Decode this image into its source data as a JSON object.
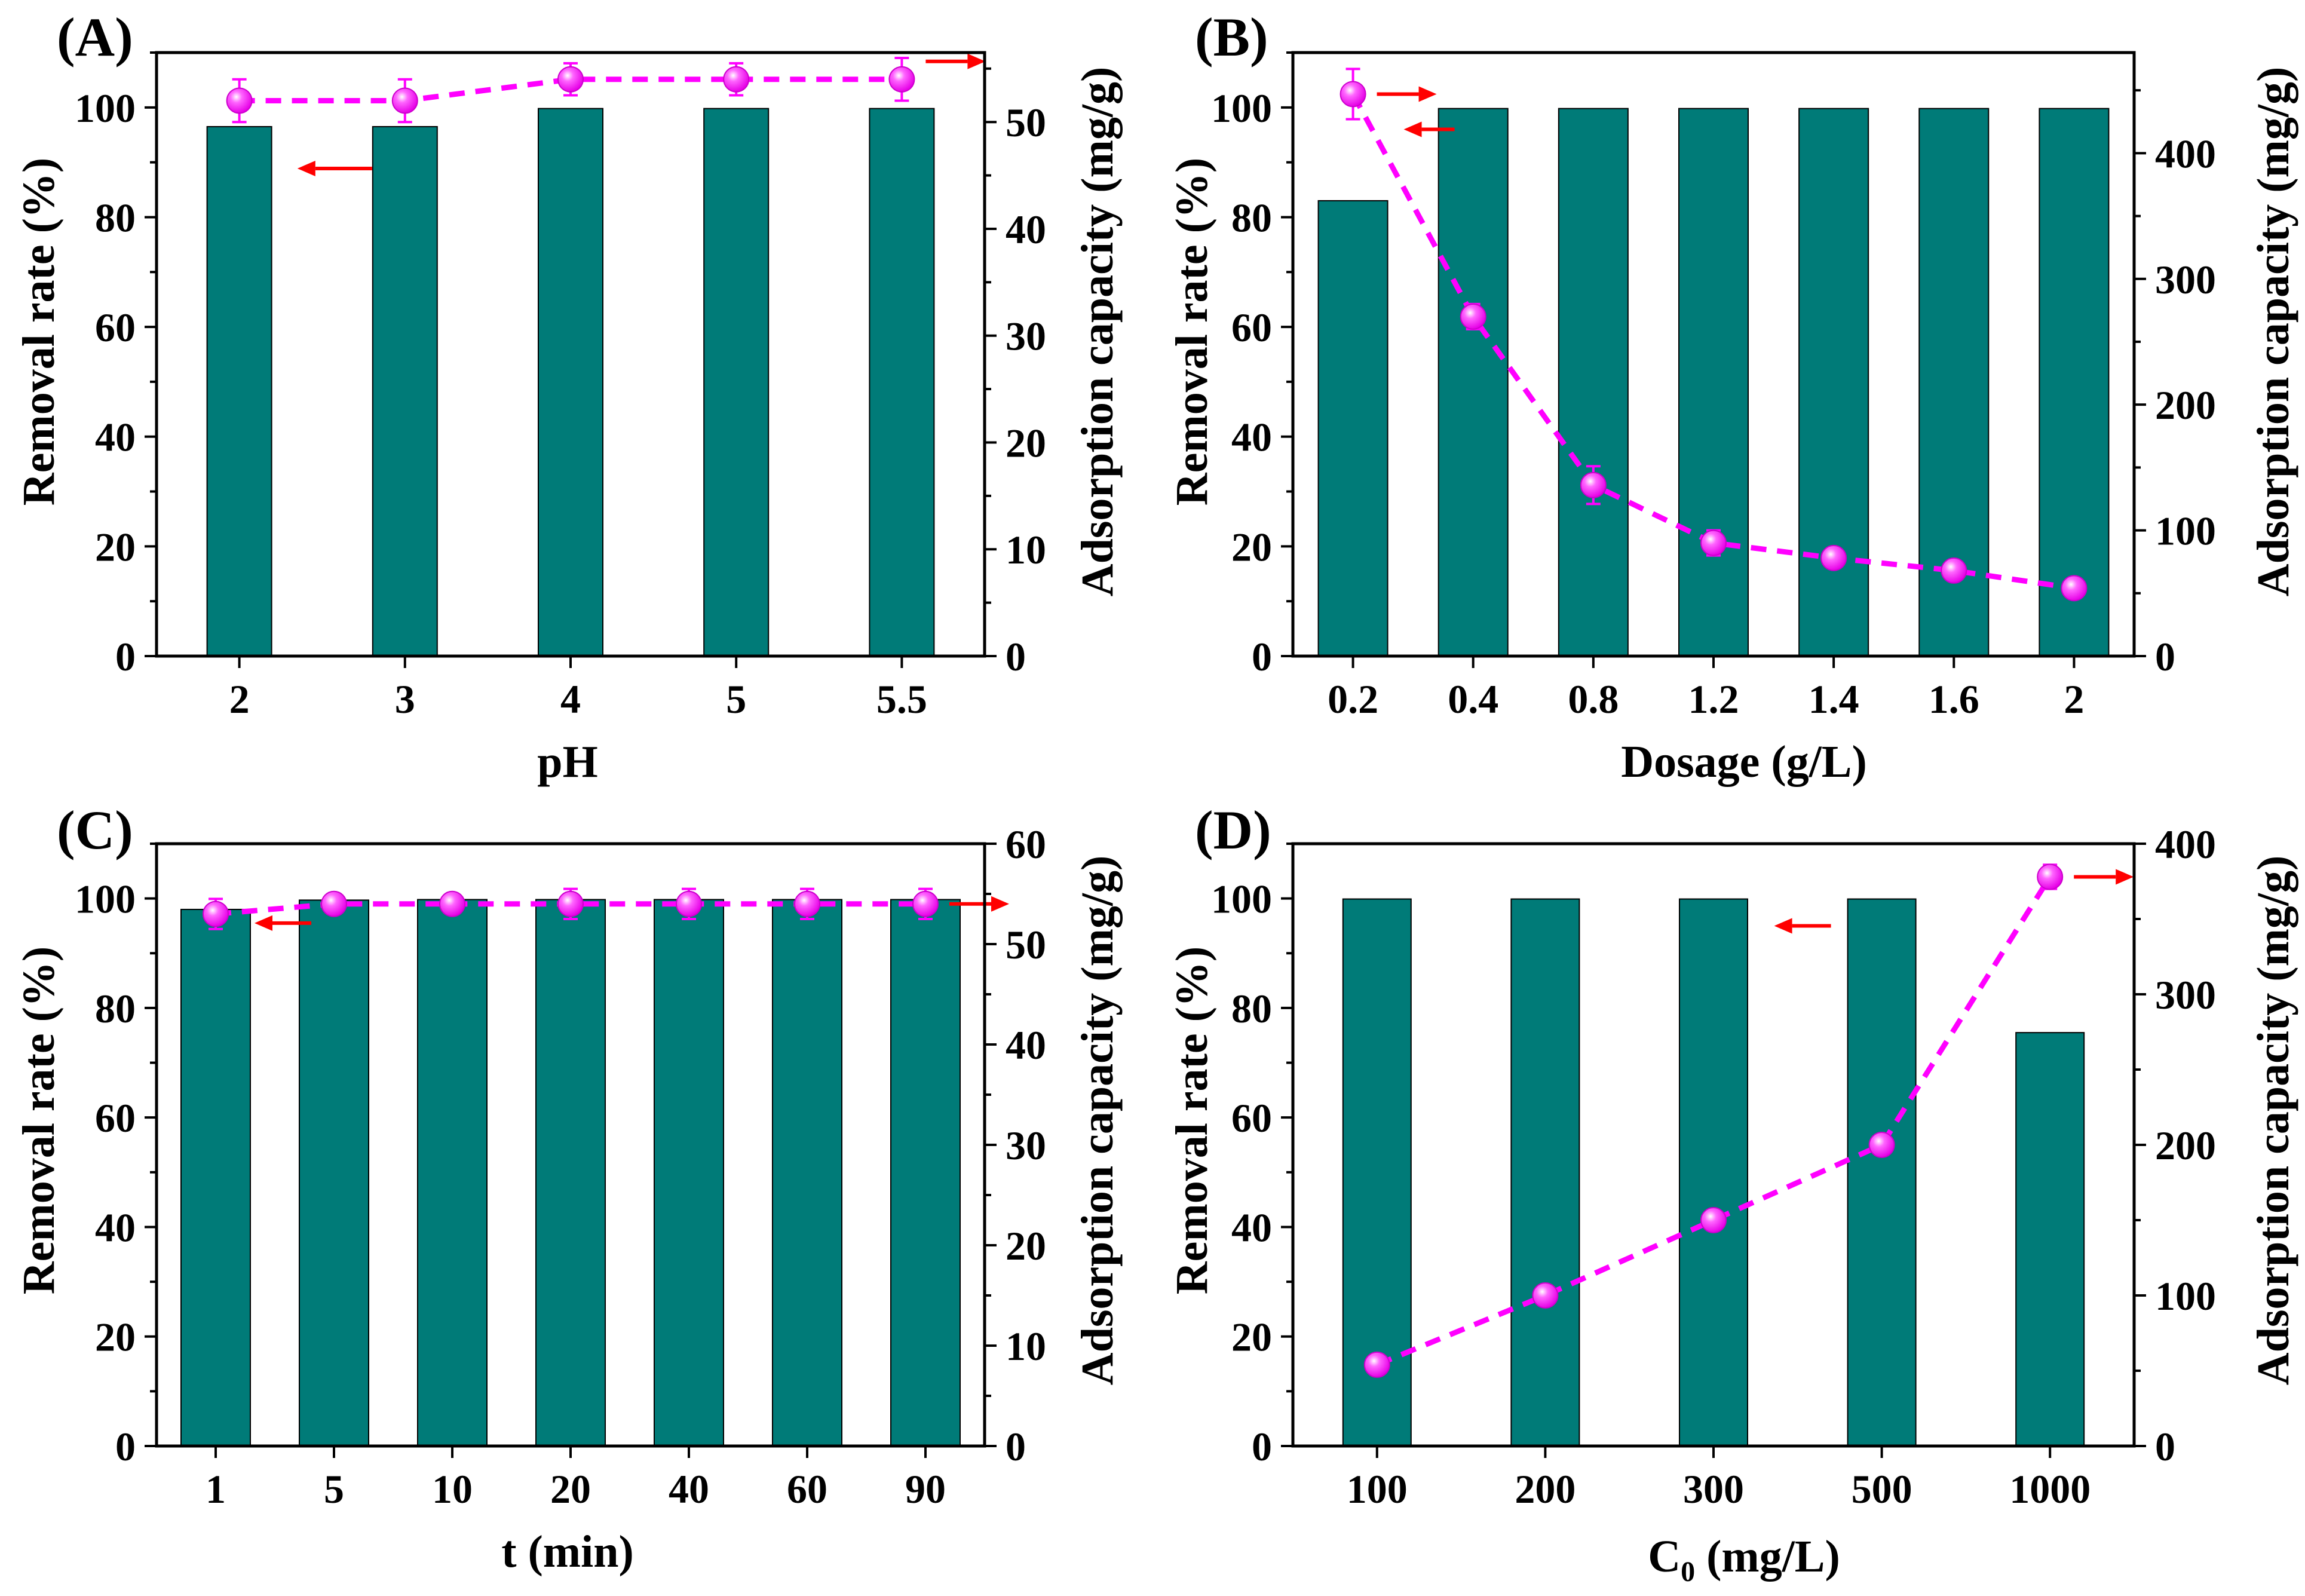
{
  "colors": {
    "bar_fill": "#007B78",
    "bar_stroke": "#000000",
    "point_fill": "#FF00FF",
    "line": "#FF00FF",
    "arrow": "#FF0000"
  },
  "chart_data": [
    {
      "panel": "(A)",
      "type": "bar",
      "categories": [
        "2",
        "3",
        "4",
        "5",
        "5.5"
      ],
      "series": [
        {
          "name": "Removal rate (%)",
          "axis": "left",
          "type": "bar",
          "values": [
            96.5,
            96.5,
            99.8,
            99.8,
            99.8
          ]
        },
        {
          "name": "Adsorption capacity (mg/g)",
          "axis": "right",
          "type": "line-scatter",
          "values": [
            52.0,
            52.0,
            54.0,
            54.0,
            54.0
          ],
          "errors": [
            2.0,
            2.0,
            1.5,
            1.5,
            2.0
          ]
        }
      ],
      "xlabel": "pH",
      "ylabel": "Removal rate (%)",
      "y2label": "Adsorption capacity (mg/g)",
      "ylim": [
        0,
        110
      ],
      "y2lim": [
        0,
        56.5
      ],
      "yticks": [
        "0",
        "20",
        "40",
        "60",
        "80",
        "100"
      ],
      "y2ticks": [
        "0",
        "10",
        "20",
        "30",
        "40",
        "50"
      ],
      "arrows": [
        {
          "series": "left",
          "category_index": 1,
          "direction": "left"
        },
        {
          "series": "right",
          "category_index": 4,
          "direction": "right"
        }
      ]
    },
    {
      "panel": "(B)",
      "type": "bar",
      "categories": [
        "0.2",
        "0.4",
        "0.8",
        "1.2",
        "1.4",
        "1.6",
        "2"
      ],
      "series": [
        {
          "name": "Removal rate (%)",
          "axis": "left",
          "type": "bar",
          "values": [
            83.0,
            99.8,
            99.8,
            99.8,
            99.8,
            99.8,
            99.8
          ]
        },
        {
          "name": "Adsorption capacity (mg/g)",
          "axis": "right",
          "type": "line-scatter",
          "values": [
            447,
            270,
            136,
            90,
            78,
            68,
            54
          ],
          "errors": [
            20,
            10,
            15,
            10,
            5,
            3,
            3
          ]
        }
      ],
      "xlabel": "Dosage (g/L)",
      "ylabel": "Removal rate (%)",
      "y2label": "Adsorption capacity (mg/g)",
      "ylim": [
        0,
        110
      ],
      "y2lim": [
        0,
        480
      ],
      "yticks": [
        "0",
        "20",
        "40",
        "60",
        "80",
        "100"
      ],
      "y2ticks": [
        "0",
        "100",
        "200",
        "300",
        "400"
      ],
      "arrows": [
        {
          "series": "right",
          "category_index": 0,
          "direction": "right"
        },
        {
          "series": "left",
          "category_index": 0,
          "direction": "left"
        }
      ]
    },
    {
      "panel": "(C)",
      "type": "bar",
      "categories": [
        "1",
        "5",
        "10",
        "20",
        "40",
        "60",
        "90"
      ],
      "series": [
        {
          "name": "Removal rate (%)",
          "axis": "left",
          "type": "bar",
          "values": [
            98.0,
            99.7,
            99.8,
            99.8,
            99.8,
            99.8,
            99.8
          ]
        },
        {
          "name": "Adsorption capacity (mg/g)",
          "axis": "right",
          "type": "line-scatter",
          "values": [
            53.0,
            54.0,
            54.0,
            54.0,
            54.0,
            54.0,
            54.0
          ],
          "errors": [
            1.5,
            0.5,
            0.5,
            1.5,
            1.5,
            1.5,
            1.5
          ]
        }
      ],
      "xlabel": "t (min)",
      "ylabel": "Removal rate (%)",
      "y2label": "Adsorption capacity (mg/g)",
      "ylim": [
        0,
        110
      ],
      "y2lim": [
        0,
        60
      ],
      "yticks": [
        "0",
        "20",
        "40",
        "60",
        "80",
        "100"
      ],
      "y2ticks": [
        "0",
        "10",
        "20",
        "30",
        "40",
        "50",
        "60"
      ],
      "arrows": [
        {
          "series": "left",
          "category_index": 0,
          "direction": "left"
        },
        {
          "series": "right",
          "category_index": 6,
          "direction": "right"
        }
      ]
    },
    {
      "panel": "(D)",
      "type": "bar",
      "categories": [
        "100",
        "200",
        "300",
        "500",
        "1000"
      ],
      "series": [
        {
          "name": "Removal rate (%)",
          "axis": "left",
          "type": "bar",
          "values": [
            99.9,
            99.9,
            99.9,
            99.9,
            75.5
          ]
        },
        {
          "name": "Adsorption capacity (mg/g)",
          "axis": "right",
          "type": "line-scatter",
          "values": [
            54,
            100,
            150,
            200,
            378
          ],
          "errors": [
            3,
            3,
            3,
            3,
            8
          ]
        }
      ],
      "xlabel_main": "C",
      "xlabel_sub": "0",
      "xlabel_rest": " (mg/L)",
      "ylabel": "Removal rate (%)",
      "y2label": "Adsorption capacity (mg/g)",
      "ylim": [
        0,
        110
      ],
      "y2lim": [
        0,
        400
      ],
      "yticks": [
        "0",
        "20",
        "40",
        "60",
        "80",
        "100"
      ],
      "y2ticks": [
        "0",
        "100",
        "200",
        "300",
        "400"
      ],
      "arrows": [
        {
          "series": "left",
          "category_index": 3,
          "direction": "left"
        },
        {
          "series": "right",
          "category_index": 4,
          "direction": "right"
        }
      ]
    }
  ]
}
